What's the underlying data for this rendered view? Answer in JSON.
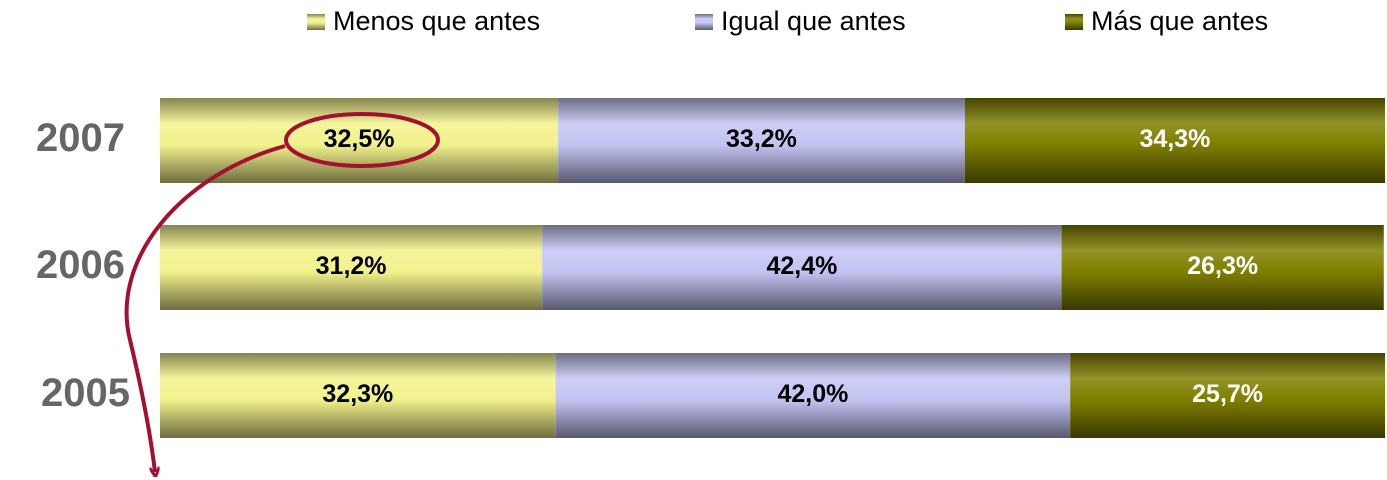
{
  "chart_data": {
    "type": "stacked_bar_horizontal",
    "categories": [
      "2007",
      "2006",
      "2005"
    ],
    "series": [
      {
        "name": "Menos que antes",
        "color": "#f2f28c",
        "values": [
          32.5,
          31.2,
          32.3
        ],
        "value_labels": [
          "32,5%",
          "31,2%",
          "32,3%"
        ]
      },
      {
        "name": "Igual que antes",
        "color": "#c4c4f4",
        "values": [
          33.2,
          42.4,
          42.0
        ],
        "value_labels": [
          "33,2%",
          "42,4%",
          "42,0%"
        ]
      },
      {
        "name": "Más que antes",
        "color": "#7f7f00",
        "values": [
          34.3,
          26.3,
          25.7
        ],
        "value_labels": [
          "34,3%",
          "26,3%",
          "25,7%"
        ]
      }
    ],
    "xlim": [
      0,
      100
    ]
  }
}
